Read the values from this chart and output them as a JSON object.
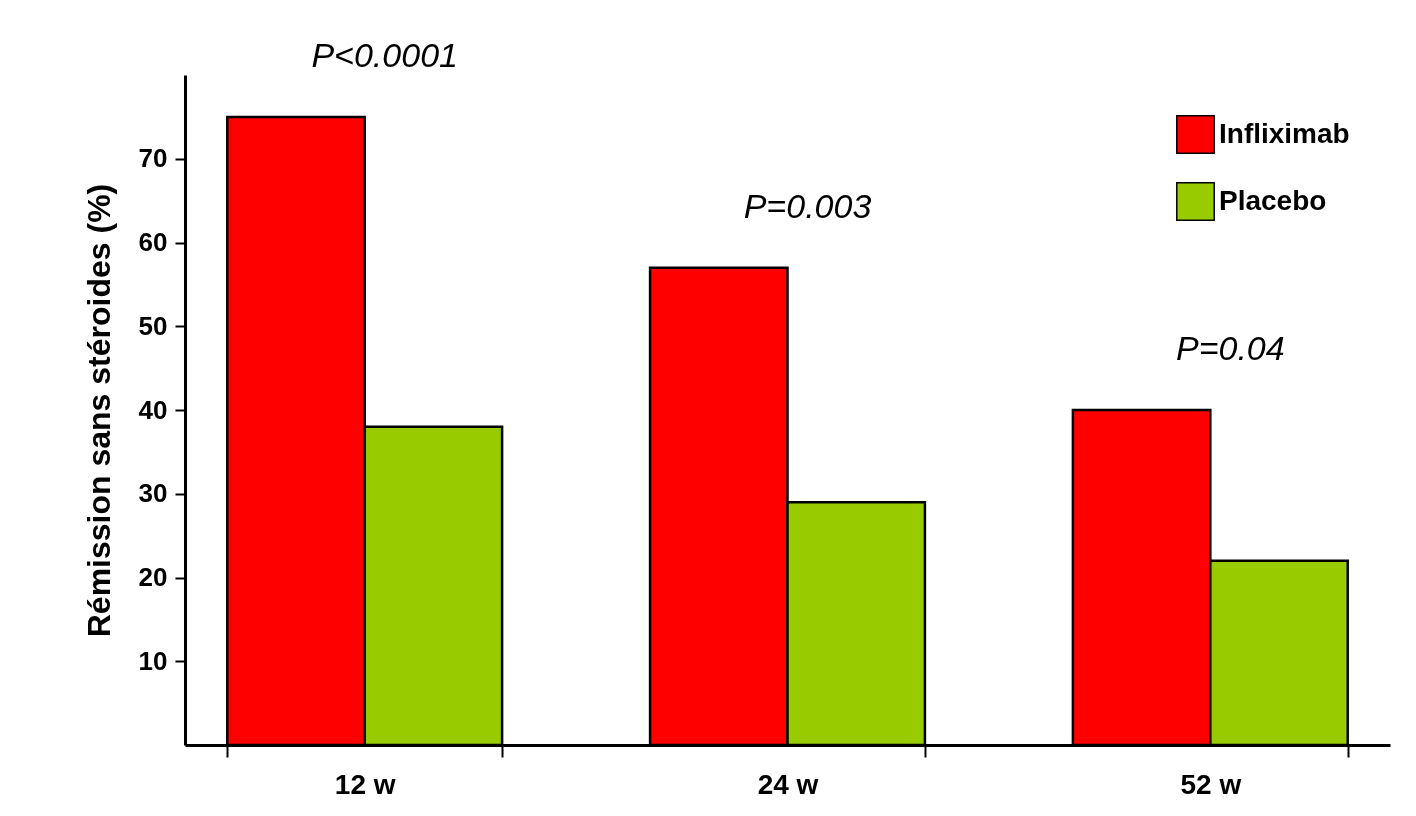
{
  "chart_data": {
    "type": "bar",
    "ylabel": "Rémission sans stéroides (%)",
    "categories": [
      "12 w",
      "24 w",
      "52 w"
    ],
    "series": [
      {
        "name": "Infliximab",
        "color": "#ff0000",
        "values": [
          75,
          57,
          40
        ]
      },
      {
        "name": "Placebo",
        "color": "#99cc00",
        "values": [
          38,
          29,
          22
        ]
      }
    ],
    "ylim": [
      0,
      80
    ],
    "yticks": [
      10,
      20,
      30,
      40,
      50,
      60,
      70
    ],
    "grid": false,
    "legend": "top right",
    "annotations": [
      "P<0.0001",
      "P=0.003",
      "P=0.04"
    ]
  }
}
